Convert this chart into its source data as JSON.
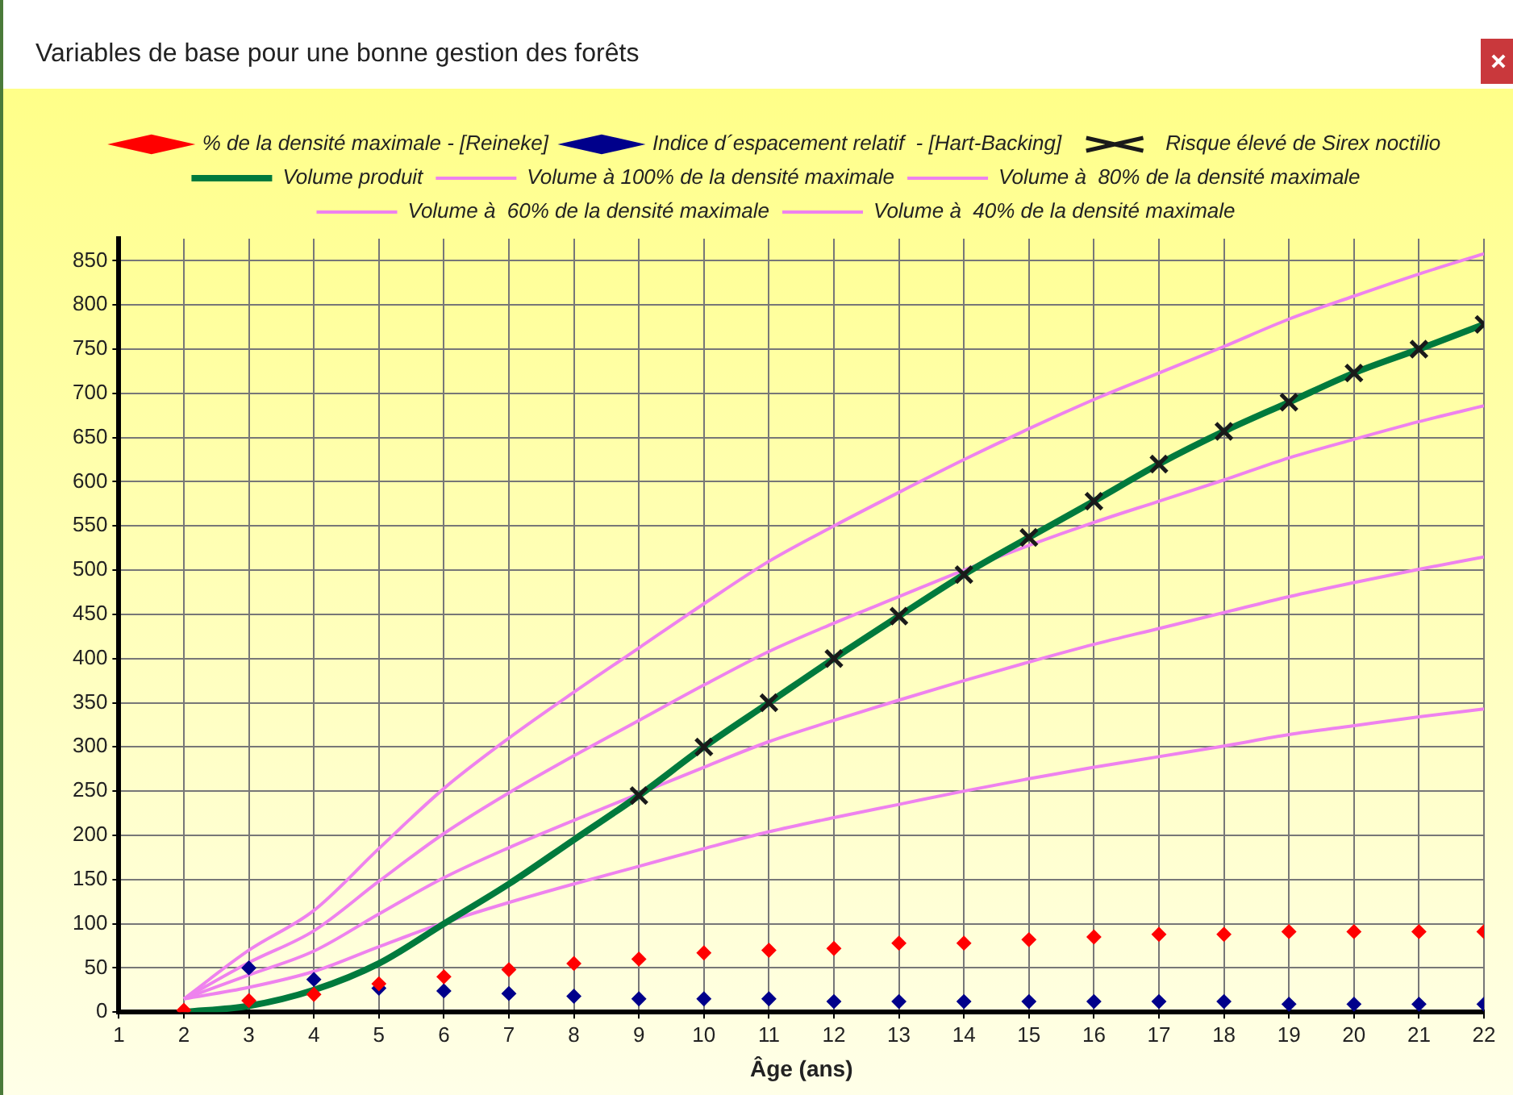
{
  "chart_data": {
    "type": "line",
    "title": "Variables de base pour une bonne gestion des forêts",
    "xlabel": "Âge (ans)",
    "x": [
      2,
      3,
      4,
      5,
      6,
      7,
      8,
      9,
      10,
      11,
      12,
      13,
      14,
      15,
      16,
      17,
      18,
      19,
      20,
      21,
      22
    ],
    "xlim": [
      1,
      22
    ],
    "xticks": [
      1,
      2,
      3,
      4,
      5,
      6,
      7,
      8,
      9,
      10,
      11,
      12,
      13,
      14,
      15,
      16,
      17,
      18,
      19,
      20,
      21,
      22
    ],
    "ylim": [
      0,
      875
    ],
    "yticks": [
      0,
      50,
      100,
      150,
      200,
      250,
      300,
      350,
      400,
      450,
      500,
      550,
      600,
      650,
      700,
      750,
      800,
      850
    ],
    "grid": true,
    "legend": "top",
    "series": [
      {
        "name": "% de la densité maximale - [Reineke]",
        "type": "scatter",
        "marker": "diamond",
        "color": "#ff0000",
        "values": [
          2,
          13,
          20,
          32,
          40,
          48,
          55,
          60,
          67,
          70,
          72,
          78,
          78,
          82,
          85,
          88,
          88,
          91,
          91,
          91,
          91
        ]
      },
      {
        "name": "Indice d´espacement relatif  - [Hart-Backing]",
        "type": "scatter",
        "marker": "diamond",
        "color": "#00008b",
        "x": [
          3,
          4,
          5,
          6,
          7,
          8,
          9,
          10,
          11,
          12,
          13,
          14,
          15,
          16,
          17,
          18,
          19,
          20,
          21,
          22
        ],
        "values": [
          50,
          37,
          27,
          24,
          21,
          18,
          15,
          15,
          15,
          12,
          12,
          12,
          12,
          12,
          12,
          12,
          9,
          9,
          9,
          9
        ]
      },
      {
        "name": "Volume produit",
        "type": "line",
        "marker": "none",
        "line_style": "solid",
        "color": "#007a3d",
        "values": [
          0,
          7,
          25,
          55,
          100,
          145,
          195,
          245,
          300,
          350,
          400,
          448,
          495,
          537,
          578,
          620,
          657,
          690,
          723,
          750,
          778
        ]
      },
      {
        "name": "Risque élevé de Sirex noctilio",
        "type": "scatter",
        "marker": "cross",
        "color": "#1a1a1a",
        "x": [
          9,
          10,
          11,
          12,
          13,
          14,
          15,
          16,
          17,
          18,
          19,
          20,
          21,
          22
        ],
        "values": [
          245,
          300,
          350,
          400,
          448,
          495,
          537,
          578,
          620,
          657,
          690,
          723,
          750,
          778
        ]
      },
      {
        "name": "Volume à 100% de la densité maximale",
        "type": "line",
        "marker": "none",
        "line_style": "solid",
        "color": "#ee82ee",
        "values": [
          15,
          70,
          115,
          185,
          253,
          310,
          362,
          412,
          462,
          510,
          550,
          588,
          625,
          660,
          693,
          723,
          753,
          784,
          810,
          835,
          858
        ]
      },
      {
        "name": "Volume à  80% de la densité maximale",
        "type": "line",
        "marker": "none",
        "line_style": "solid",
        "color": "#ee82ee",
        "values": [
          15,
          56,
          92,
          148,
          202,
          248,
          290,
          330,
          370,
          408,
          440,
          470,
          500,
          528,
          554,
          578,
          602,
          627,
          648,
          668,
          686
        ]
      },
      {
        "name": "Volume à  60% de la densité maximale",
        "type": "line",
        "marker": "none",
        "line_style": "solid",
        "color": "#ee82ee",
        "values": [
          15,
          42,
          69,
          111,
          152,
          186,
          217,
          247,
          277,
          306,
          330,
          353,
          375,
          396,
          416,
          434,
          452,
          470,
          486,
          501,
          515
        ]
      },
      {
        "name": "Volume à  40% de la densité maximale",
        "type": "line",
        "marker": "none",
        "line_style": "solid",
        "color": "#ee82ee",
        "values": [
          15,
          28,
          46,
          74,
          101,
          124,
          145,
          165,
          185,
          204,
          220,
          235,
          250,
          264,
          277,
          289,
          301,
          314,
          324,
          334,
          343
        ]
      }
    ]
  }
}
